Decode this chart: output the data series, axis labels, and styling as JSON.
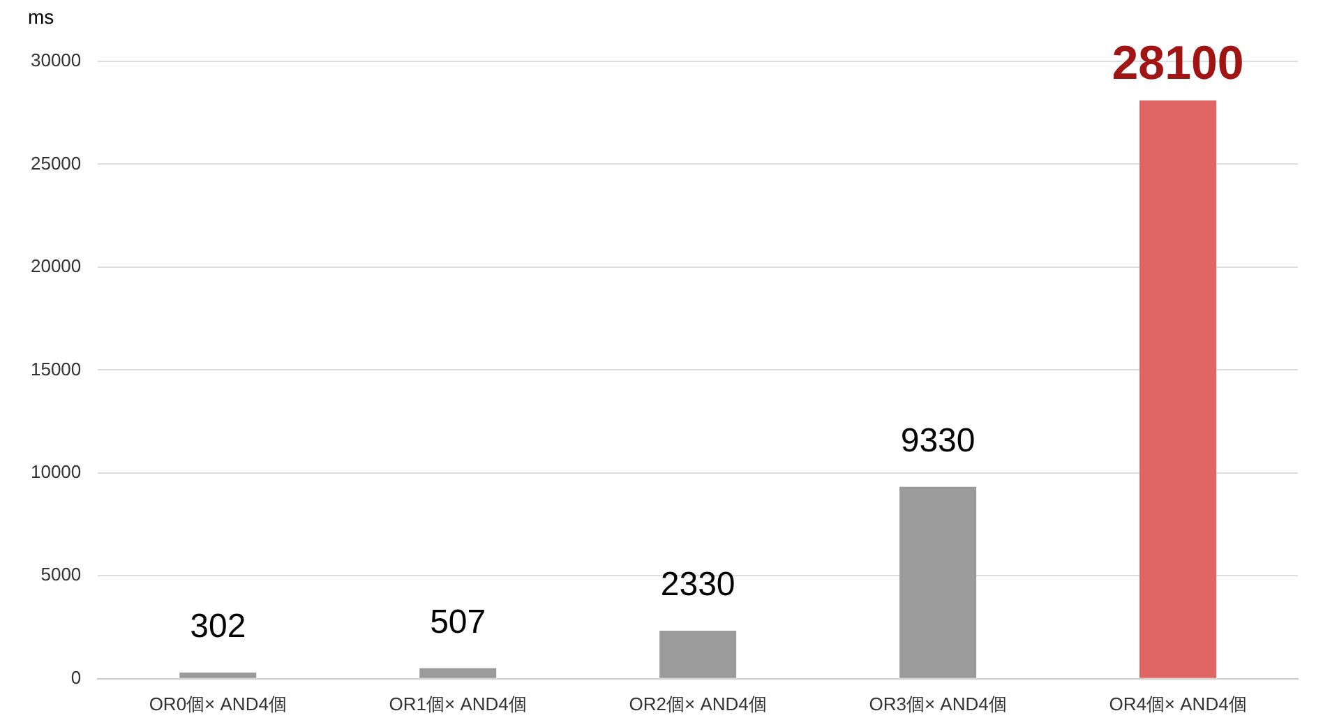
{
  "chart_data": {
    "type": "bar",
    "ylabel": "ms",
    "categories": [
      "OR0個× AND4個",
      "OR1個× AND4個",
      "OR2個× AND4個",
      "OR3個× AND4個",
      "OR4個× AND4個"
    ],
    "values": [
      302,
      507,
      2330,
      9330,
      28100
    ],
    "colors": [
      "#9b9b9b",
      "#9b9b9b",
      "#9b9b9b",
      "#9b9b9b",
      "#e06666"
    ],
    "ylim": [
      0,
      30000
    ],
    "yticks": [
      0,
      5000,
      10000,
      15000,
      20000,
      25000,
      30000
    ],
    "grid": "y",
    "data_labels": true
  }
}
